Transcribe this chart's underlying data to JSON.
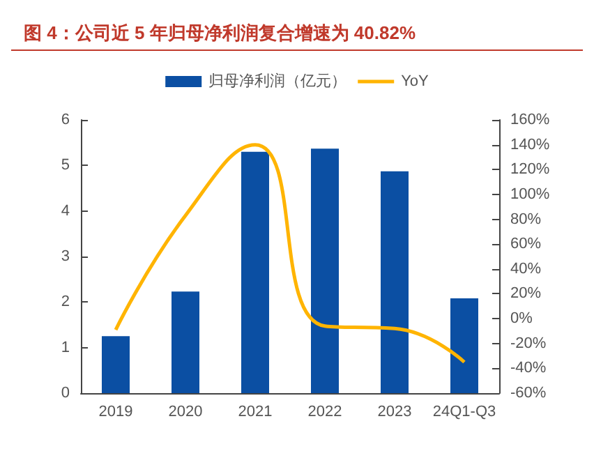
{
  "chart_data": {
    "type": "bar",
    "title": "图 4：公司近 5 年归母净利润复合增速为 40.82%",
    "categories": [
      "2019",
      "2020",
      "2021",
      "2022",
      "2023",
      "24Q1-Q3"
    ],
    "series": [
      {
        "name": "归母净利润（亿元）",
        "color": "#0b4fa3",
        "values": [
          1.25,
          2.23,
          5.3,
          5.37,
          4.87,
          2.08
        ]
      },
      {
        "name": "YoY",
        "type": "line",
        "axis": "y2",
        "color": "#ffb400",
        "values": [
          -9,
          83,
          140,
          -6,
          -8,
          -35
        ]
      }
    ],
    "ylim": [
      0,
      6
    ],
    "yticks": [
      0,
      1,
      2,
      3,
      4,
      5,
      6
    ],
    "y2lim": [
      -60,
      160
    ],
    "y2ticks": [
      {
        "value": -60,
        "label": "-60%"
      },
      {
        "value": -40,
        "label": "-40%"
      },
      {
        "value": -20,
        "label": "-20%"
      },
      {
        "value": 0,
        "label": "0%"
      },
      {
        "value": 20,
        "label": "20%"
      },
      {
        "value": 40,
        "label": "40%"
      },
      {
        "value": 60,
        "label": "60%"
      },
      {
        "value": 80,
        "label": "80%"
      },
      {
        "value": 100,
        "label": "100%"
      },
      {
        "value": 120,
        "label": "120%"
      },
      {
        "value": 140,
        "label": "140%"
      },
      {
        "value": 160,
        "label": "160%"
      }
    ],
    "legend": "top",
    "grid": false,
    "marker": "none"
  }
}
